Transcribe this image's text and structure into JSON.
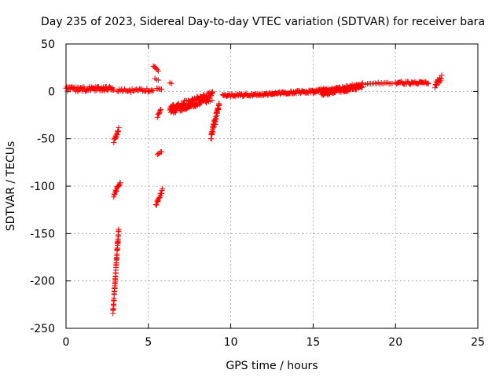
{
  "chart_data": {
    "type": "scatter",
    "title": "Day 235 of 2023, Sidereal Day-to-day VTEC variation (SDTVAR) for receiver bara",
    "xlabel": "GPS time / hours",
    "ylabel": "SDTVAR / TECUs",
    "xlim": [
      0,
      25
    ],
    "ylim": [
      -250,
      50
    ],
    "xticks": [
      0,
      5,
      10,
      15,
      20,
      25
    ],
    "yticks": [
      50,
      0,
      -50,
      -100,
      -150,
      -200,
      -250
    ],
    "grid": true,
    "marker": "+",
    "color": "#ff0000",
    "series": [
      {
        "name": "SDTVAR",
        "segments": [
          {
            "x": [
              0.0,
              2.9
            ],
            "y": [
              2,
              3
            ],
            "spread": 2.5,
            "n": 70
          },
          {
            "x": [
              3.1,
              5.3
            ],
            "y": [
              1,
              1
            ],
            "spread": 2,
            "n": 35
          },
          {
            "x": [
              2.9,
              3.2
            ],
            "y": [
              -53,
              -40
            ],
            "spread": 2,
            "n": 14
          },
          {
            "x": [
              2.9,
              3.3
            ],
            "y": [
              -110,
              -96
            ],
            "spread": 2,
            "n": 16
          },
          {
            "x": [
              2.85,
              3.2
            ],
            "y": [
              -234,
              -144
            ],
            "spread": 2,
            "n": 60
          },
          {
            "x": [
              5.3,
              5.6
            ],
            "y": [
              27,
              22
            ],
            "spread": 1,
            "n": 6
          },
          {
            "x": [
              5.4,
              5.6
            ],
            "y": [
              14,
              12
            ],
            "spread": 1,
            "n": 3
          },
          {
            "x": [
              5.5,
              5.8
            ],
            "y": [
              3,
              2
            ],
            "spread": 1,
            "n": 5
          },
          {
            "x": [
              5.55,
              5.75
            ],
            "y": [
              -26,
              -18
            ],
            "spread": 1.5,
            "n": 8
          },
          {
            "x": [
              5.55,
              5.8
            ],
            "y": [
              -67,
              -63
            ],
            "spread": 1,
            "n": 5
          },
          {
            "x": [
              5.45,
              5.85
            ],
            "y": [
              -120,
              -104
            ],
            "spread": 2,
            "n": 16
          },
          {
            "x": [
              6.3,
              6.4
            ],
            "y": [
              9,
              8
            ],
            "spread": 0.5,
            "n": 2
          },
          {
            "x": [
              6.3,
              8.9
            ],
            "y": [
              -20,
              -5
            ],
            "spread": 5,
            "n": 150
          },
          {
            "x": [
              8.8,
              9.3
            ],
            "y": [
              -48,
              -13
            ],
            "spread": 4,
            "n": 45
          },
          {
            "x": [
              9.5,
              12.5
            ],
            "y": [
              -4,
              -3
            ],
            "spread": 1.5,
            "n": 60
          },
          {
            "x": [
              12.5,
              15.0
            ],
            "y": [
              -2,
              0
            ],
            "spread": 1.5,
            "n": 60
          },
          {
            "x": [
              15.0,
              16.5
            ],
            "y": [
              0,
              2
            ],
            "spread": 2,
            "n": 50
          },
          {
            "x": [
              15.5,
              18.0
            ],
            "y": [
              -2,
              6
            ],
            "spread": 3,
            "n": 120
          },
          {
            "x": [
              18.2,
              19.8
            ],
            "y": [
              8,
              9
            ],
            "spread": 1,
            "n": 18
          },
          {
            "x": [
              20.0,
              22.0
            ],
            "y": [
              9,
              9
            ],
            "spread": 1.5,
            "n": 40
          },
          {
            "x": [
              22.4,
              22.8
            ],
            "y": [
              6,
              14
            ],
            "spread": 3,
            "n": 18
          }
        ]
      }
    ]
  }
}
